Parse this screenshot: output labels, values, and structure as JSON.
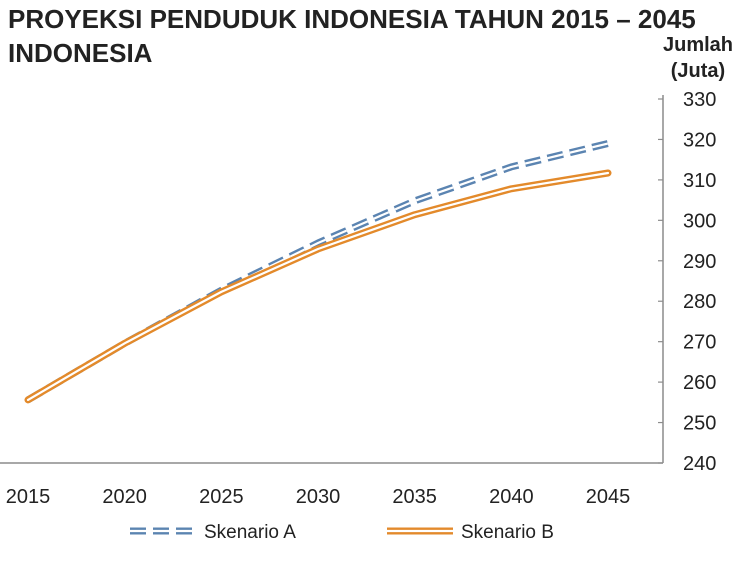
{
  "chart_data": {
    "type": "line",
    "title": [
      "PROYEKSI PENDUDUK INDONESIA TAHUN 2015 – 2045",
      "INDONESIA"
    ],
    "xlabel": "",
    "ylabel": [
      "Jumlah",
      "(Juta)"
    ],
    "x": [
      2015,
      2020,
      2025,
      2030,
      2035,
      2040,
      2045
    ],
    "xlim": [
      2015,
      2045
    ],
    "ylim": [
      240,
      330
    ],
    "yticks": [
      240,
      250,
      260,
      270,
      280,
      290,
      300,
      310,
      320,
      330
    ],
    "y_axis_side": "right",
    "grid": false,
    "legend_position": "bottom",
    "series": [
      {
        "name": "Skenario A",
        "values": [
          255.6,
          269.6,
          282.7,
          294.4,
          304.8,
          313.2,
          319.0
        ],
        "color": "#5b84b1",
        "style": "double-dashed"
      },
      {
        "name": "Skenario B",
        "values": [
          255.6,
          269.6,
          282.3,
          292.9,
          301.4,
          307.8,
          311.7
        ],
        "color": "#e38a2b",
        "style": "double-solid"
      }
    ]
  }
}
